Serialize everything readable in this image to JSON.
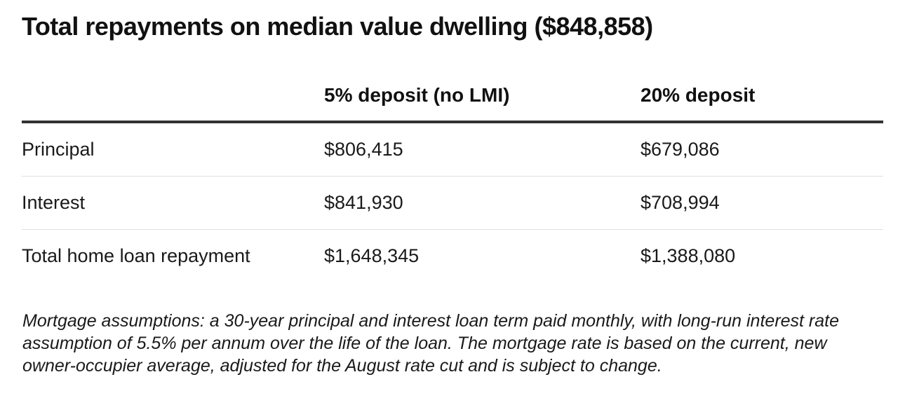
{
  "title": "Total repayments on median value dwelling ($848,858)",
  "table": {
    "headers": [
      "",
      "5% deposit (no LMI)",
      "20% deposit"
    ],
    "rows": [
      [
        "Principal",
        "$806,415",
        "$679,086"
      ],
      [
        "Interest",
        "$841,930",
        "$708,994"
      ],
      [
        "Total home loan repayment",
        "$1,648,345",
        "$1,388,080"
      ]
    ]
  },
  "note": "Mortgage assumptions: a 30-year principal and interest loan term paid monthly, with long-run interest rate assumption of 5.5% per annum over the life of the loan. The mortgage rate is based on the current, new owner-occupier average, adjusted for the August rate cut and is subject to change.",
  "colors": {
    "text": "#1a1a1a",
    "header_rule": "#333333",
    "row_rule": "#e0e0e0",
    "background": "#ffffff"
  }
}
